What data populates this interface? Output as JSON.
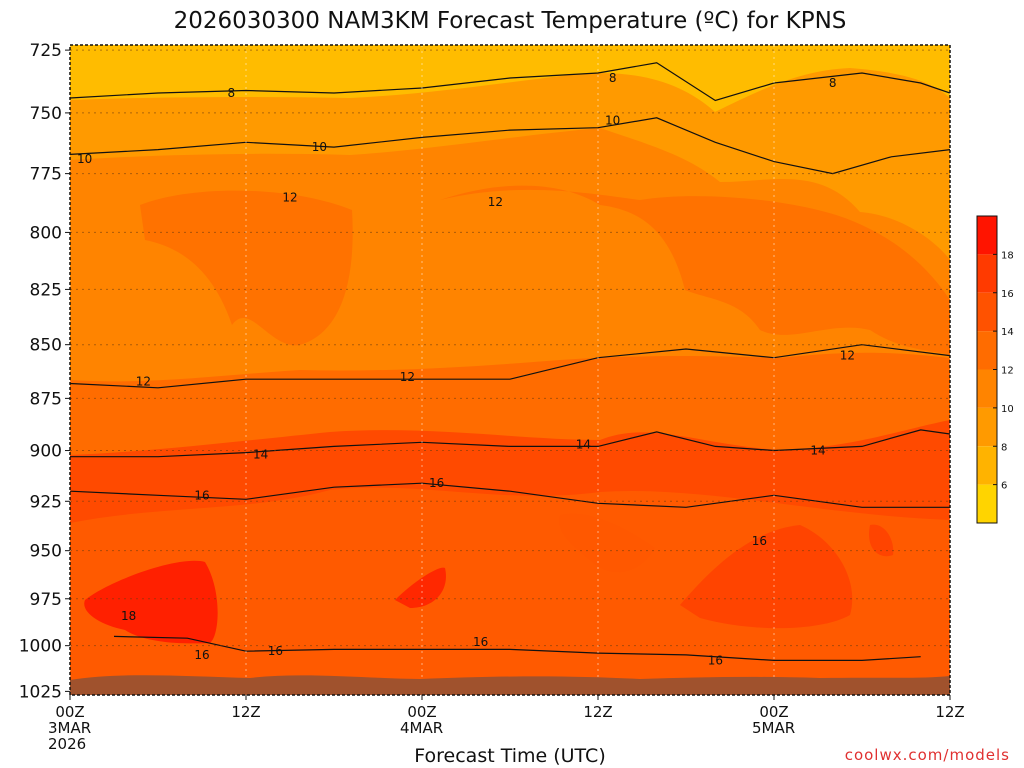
{
  "chart_data": {
    "type": "heatmap",
    "title": "2026030300 NAM3KM Forecast Temperature (ºC) for KPNS",
    "xlabel": "Forecast Time (UTC)",
    "ylabel": "",
    "credit": "coolwx.com/models",
    "x_ticks": [
      {
        "hours": 0,
        "line1": "00Z",
        "line2": "3MAR",
        "line3": "2026"
      },
      {
        "hours": 12,
        "line1": "12Z",
        "line2": "",
        "line3": ""
      },
      {
        "hours": 24,
        "line1": "00Z",
        "line2": "4MAR",
        "line3": ""
      },
      {
        "hours": 36,
        "line1": "12Z",
        "line2": "",
        "line3": ""
      },
      {
        "hours": 48,
        "line1": "00Z",
        "line2": "5MAR",
        "line3": ""
      },
      {
        "hours": 60,
        "line1": "12Z",
        "line2": "",
        "line3": ""
      }
    ],
    "xlim": [
      0,
      60
    ],
    "y_ticks": [
      725,
      750,
      775,
      800,
      825,
      850,
      875,
      900,
      925,
      950,
      975,
      1000,
      1025
    ],
    "ylim": [
      723,
      1027
    ],
    "y_inverted": true,
    "yscale": "log",
    "surface_pressure_approx_hPa": 1017,
    "contour_levels": [
      8,
      10,
      12,
      14,
      16,
      18
    ],
    "colorbar": {
      "levels": [
        6,
        8,
        10,
        12,
        14,
        16,
        18
      ],
      "colors": [
        "#ffd400",
        "#ffb300",
        "#ff9a00",
        "#ff8400",
        "#ff6c00",
        "#ff5200",
        "#ff3a00",
        "#ff1400"
      ]
    },
    "series": [
      {
        "name": "8",
        "points": [
          [
            0,
            744
          ],
          [
            6,
            742
          ],
          [
            12,
            741
          ],
          [
            18,
            742
          ],
          [
            24,
            740
          ],
          [
            30,
            736
          ],
          [
            36,
            734
          ],
          [
            40,
            730
          ],
          [
            44,
            745
          ],
          [
            48,
            738
          ],
          [
            54,
            734
          ],
          [
            58,
            738
          ],
          [
            60,
            742
          ]
        ]
      },
      {
        "name": "10",
        "points": [
          [
            0,
            767
          ],
          [
            6,
            765
          ],
          [
            12,
            762
          ],
          [
            18,
            764
          ],
          [
            24,
            760
          ],
          [
            30,
            757
          ],
          [
            36,
            756
          ],
          [
            40,
            752
          ],
          [
            44,
            762
          ],
          [
            48,
            770
          ],
          [
            52,
            775
          ],
          [
            56,
            768
          ],
          [
            60,
            765
          ]
        ]
      },
      {
        "name": "12",
        "points": [
          [
            0,
            868
          ],
          [
            6,
            870
          ],
          [
            12,
            866
          ],
          [
            18,
            866
          ],
          [
            24,
            866
          ],
          [
            30,
            866
          ],
          [
            36,
            856
          ],
          [
            42,
            852
          ],
          [
            48,
            856
          ],
          [
            54,
            850
          ],
          [
            60,
            855
          ]
        ]
      },
      {
        "name": "14",
        "points": [
          [
            0,
            903
          ],
          [
            6,
            903
          ],
          [
            12,
            901
          ],
          [
            18,
            898
          ],
          [
            24,
            896
          ],
          [
            30,
            898
          ],
          [
            36,
            898
          ],
          [
            40,
            891
          ],
          [
            44,
            898
          ],
          [
            48,
            900
          ],
          [
            54,
            898
          ],
          [
            58,
            890
          ],
          [
            60,
            892
          ]
        ]
      },
      {
        "name": "16",
        "points": [
          [
            0,
            920
          ],
          [
            6,
            922
          ],
          [
            12,
            924
          ],
          [
            18,
            918
          ],
          [
            24,
            916
          ],
          [
            30,
            920
          ],
          [
            36,
            926
          ],
          [
            42,
            928
          ],
          [
            48,
            922
          ],
          [
            54,
            928
          ],
          [
            60,
            928
          ]
        ]
      },
      {
        "name": "16",
        "points": [
          [
            3,
            995
          ],
          [
            8,
            996
          ],
          [
            12,
            1003
          ],
          [
            18,
            1002
          ],
          [
            24,
            1002
          ],
          [
            30,
            1002
          ],
          [
            36,
            1004
          ],
          [
            42,
            1005
          ],
          [
            48,
            1008
          ],
          [
            54,
            1008
          ],
          [
            58,
            1006
          ]
        ]
      }
    ],
    "annotations": [
      {
        "text": "8",
        "hours": 11,
        "hPa": 742
      },
      {
        "text": "8",
        "hours": 37,
        "hPa": 736
      },
      {
        "text": "8",
        "hours": 52,
        "hPa": 738
      },
      {
        "text": "10",
        "hours": 1,
        "hPa": 769
      },
      {
        "text": "10",
        "hours": 17,
        "hPa": 764
      },
      {
        "text": "10",
        "hours": 37,
        "hPa": 753
      },
      {
        "text": "12",
        "hours": 15,
        "hPa": 785
      },
      {
        "text": "12",
        "hours": 29,
        "hPa": 787
      },
      {
        "text": "12",
        "hours": 5,
        "hPa": 867
      },
      {
        "text": "12",
        "hours": 23,
        "hPa": 865
      },
      {
        "text": "12",
        "hours": 53,
        "hPa": 855
      },
      {
        "text": "14",
        "hours": 13,
        "hPa": 902
      },
      {
        "text": "14",
        "hours": 35,
        "hPa": 897
      },
      {
        "text": "14",
        "hours": 51,
        "hPa": 900
      },
      {
        "text": "16",
        "hours": 9,
        "hPa": 922
      },
      {
        "text": "16",
        "hours": 25,
        "hPa": 916
      },
      {
        "text": "16",
        "hours": 47,
        "hPa": 945
      },
      {
        "text": "16",
        "hours": 9,
        "hPa": 1005
      },
      {
        "text": "16",
        "hours": 14,
        "hPa": 1003
      },
      {
        "text": "16",
        "hours": 28,
        "hPa": 998
      },
      {
        "text": "16",
        "hours": 44,
        "hPa": 1008
      },
      {
        "text": "18",
        "hours": 4,
        "hPa": 984
      }
    ]
  }
}
